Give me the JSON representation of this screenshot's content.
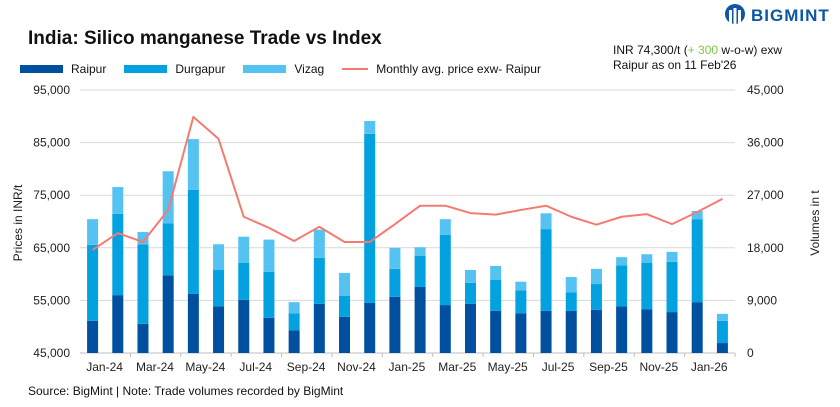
{
  "logo": {
    "text": "BIGMINT"
  },
  "title": "India: Silico manganese Trade vs Index",
  "note": {
    "line1_prefix": "INR 74,300/t (",
    "change": "+ 300",
    "line1_suffix": " w-o-w) exw",
    "line2": "Raipur as on 11 Feb'26"
  },
  "source": "Source: BigMint | Note: Trade volumes recorded by BigMint",
  "chart_data": {
    "type": "bar+line",
    "title": "India: Silico manganese Trade vs Index",
    "ylabel_left": "Prices in INR/t",
    "ylabel_right": "Volumes in t",
    "ylim_left": [
      45000,
      95000
    ],
    "ylim_right": [
      0,
      45000
    ],
    "yticks_left": [
      "45,000",
      "55,000",
      "65,000",
      "75,000",
      "85,000",
      "95,000"
    ],
    "yticks_right": [
      "0",
      "9,000",
      "18,000",
      "27,000",
      "36,000",
      "45,000"
    ],
    "grid": true,
    "legend_position": "top-left",
    "categories": [
      "Jan-24",
      "Feb-24",
      "Mar-24",
      "Apr-24",
      "May-24",
      "Jun-24",
      "Jul-24",
      "Aug-24",
      "Sep-24",
      "Oct-24",
      "Nov-24",
      "Dec-24",
      "Jan-25",
      "Feb-25",
      "Mar-25",
      "Apr-25",
      "May-25",
      "Jun-25",
      "Jul-25",
      "Aug-25",
      "Sep-25",
      "Oct-25",
      "Nov-25",
      "Dec-25",
      "Jan-26",
      "Feb-26"
    ],
    "xtick_labels": [
      "Jan-24",
      "Mar-24",
      "May-24",
      "Jul-24",
      "Sep-24",
      "Nov-24",
      "Jan-25",
      "Mar-25",
      "May-25",
      "Jul-25",
      "Sep-25",
      "Nov-25",
      "Jan-26"
    ],
    "series": [
      {
        "name": "Raipur",
        "type": "stacked-bar",
        "axis": "right",
        "color": "#0050a0",
        "values": [
          5500,
          9900,
          5000,
          13300,
          10100,
          8000,
          9100,
          6000,
          3900,
          8400,
          6200,
          8600,
          9600,
          11300,
          8200,
          8400,
          7200,
          6800,
          7200,
          7200,
          7400,
          8000,
          7500,
          7000,
          8700,
          1700
        ]
      },
      {
        "name": "Durgapur",
        "type": "stacked-bar",
        "axis": "right",
        "color": "#03a1e0",
        "values": [
          13000,
          13900,
          13600,
          8900,
          17800,
          6200,
          6300,
          7900,
          2900,
          7900,
          3600,
          28900,
          4800,
          5300,
          12000,
          3600,
          5300,
          3900,
          14000,
          3200,
          4400,
          7000,
          7900,
          8600,
          14200,
          3800
        ]
      },
      {
        "name": "Vizag",
        "type": "stacked-bar",
        "axis": "right",
        "color": "#55c3f2",
        "values": [
          4400,
          4600,
          2100,
          8900,
          8700,
          4400,
          4500,
          5500,
          1900,
          4800,
          3900,
          2200,
          3600,
          1500,
          2700,
          2200,
          2400,
          1500,
          2700,
          2600,
          2600,
          1400,
          1500,
          1700,
          1400,
          1200
        ]
      },
      {
        "name": "Monthly avg. price exw- Raipur",
        "type": "line",
        "axis": "left",
        "color": "#f47b72",
        "values": [
          64600,
          67800,
          66100,
          72200,
          89900,
          85700,
          70900,
          68800,
          66300,
          69000,
          66100,
          66100,
          69500,
          73000,
          73000,
          71600,
          71300,
          72200,
          73000,
          70900,
          69400,
          70900,
          71400,
          69500,
          71800,
          74300
        ]
      }
    ]
  }
}
